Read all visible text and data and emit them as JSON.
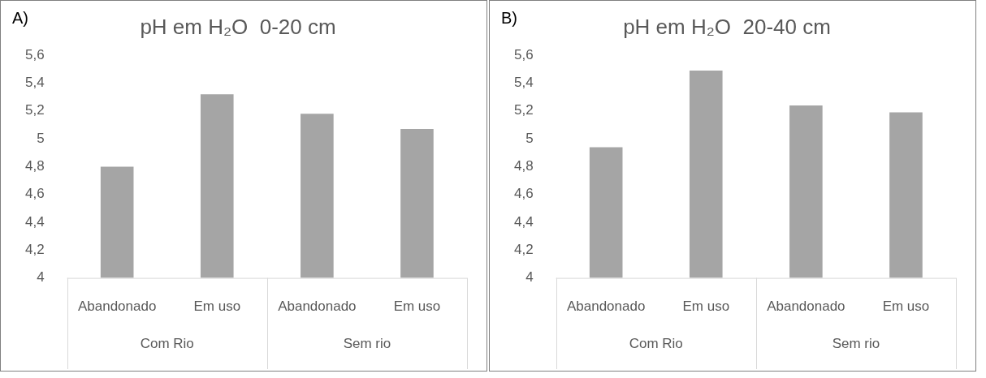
{
  "chart_data": [
    {
      "type": "bar",
      "title": "pH em H₂O  0-20 cm",
      "categories": [
        "Abandonado",
        "Em uso",
        "Abandonado",
        "Em uso"
      ],
      "values": [
        4.8,
        5.32,
        5.18,
        5.07
      ],
      "color": "#a5a5a5",
      "ylim": [
        4,
        5.6
      ],
      "yticks": [
        {
          "value": 4,
          "label": "4"
        },
        {
          "value": 4.2,
          "label": "4,2"
        },
        {
          "value": 4.4,
          "label": "4,4"
        },
        {
          "value": 4.6,
          "label": "4,6"
        },
        {
          "value": 4.8,
          "label": "4,8"
        },
        {
          "value": 5,
          "label": "5"
        },
        {
          "value": 5.2,
          "label": "5,2"
        },
        {
          "value": 5.4,
          "label": "5,4"
        },
        {
          "value": 5.6,
          "label": "5,6"
        }
      ],
      "annotations": [
        "A)",
        "Com Rio",
        "Sem rio"
      ]
    },
    {
      "type": "bar",
      "title": "pH em H₂O  20-40 cm",
      "categories": [
        "Abandonado",
        "Em uso",
        "Abandonado",
        "Em uso"
      ],
      "values": [
        4.94,
        5.49,
        5.24,
        5.19
      ],
      "color": "#a5a5a5",
      "ylim": [
        4,
        5.6
      ],
      "yticks": [
        {
          "value": 4,
          "label": "4"
        },
        {
          "value": 4.2,
          "label": "4,2"
        },
        {
          "value": 4.4,
          "label": "4,4"
        },
        {
          "value": 4.6,
          "label": "4,6"
        },
        {
          "value": 4.8,
          "label": "4,8"
        },
        {
          "value": 5,
          "label": "5"
        },
        {
          "value": 5.2,
          "label": "5,2"
        },
        {
          "value": 5.4,
          "label": "5,4"
        },
        {
          "value": 5.6,
          "label": "5,6"
        }
      ],
      "annotations": [
        "B)",
        "Com Rio",
        "Sem rio"
      ]
    }
  ]
}
